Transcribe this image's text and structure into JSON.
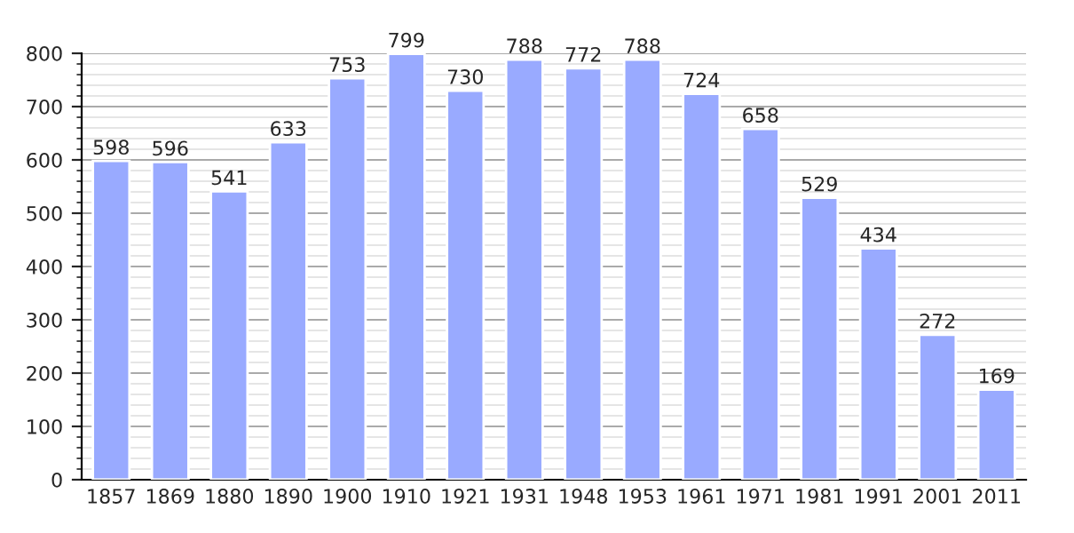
{
  "chart_data": {
    "type": "bar",
    "categories": [
      "1857",
      "1869",
      "1880",
      "1890",
      "1900",
      "1910",
      "1921",
      "1931",
      "1948",
      "1953",
      "1961",
      "1971",
      "1981",
      "1991",
      "2001",
      "2011"
    ],
    "values": [
      598,
      596,
      541,
      633,
      753,
      799,
      730,
      788,
      772,
      788,
      724,
      658,
      529,
      434,
      272,
      169
    ],
    "color": "#99aaff",
    "ylim": [
      0,
      800
    ],
    "yticks": [
      0,
      100,
      200,
      300,
      400,
      500,
      600,
      700,
      800
    ],
    "grid": "y",
    "data_labels": true
  }
}
